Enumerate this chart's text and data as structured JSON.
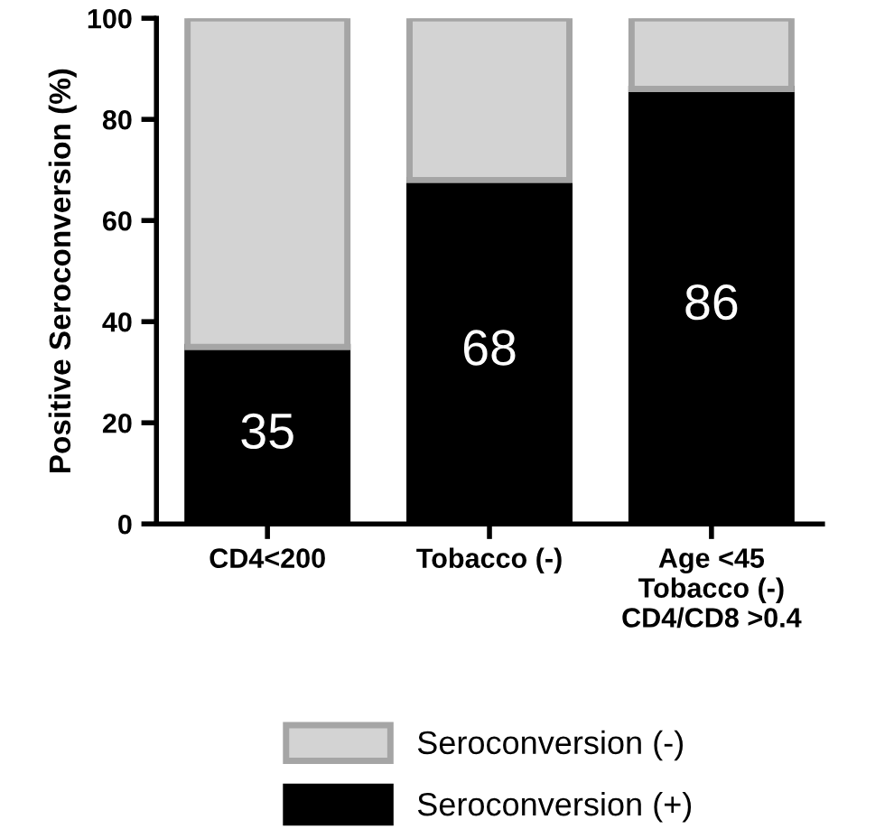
{
  "chart_data": {
    "type": "bar",
    "stacked": true,
    "ylabel": "Positive Seroconversion (%)",
    "categories": [
      "CD4<200",
      "Tobacco (-)",
      "Age <45\nTobacco (-)\nCD4/CD8 >0.4"
    ],
    "series": [
      {
        "name": "Seroconversion (+)",
        "color": "#000000",
        "values": [
          35,
          68,
          86
        ],
        "value_labels": [
          "35",
          "68",
          "86"
        ]
      },
      {
        "name": "Seroconversion (-)",
        "color": "#d3d3d3",
        "values": [
          65,
          32,
          14
        ]
      }
    ],
    "ylim": [
      0,
      100
    ],
    "yticks": [
      0,
      20,
      40,
      60,
      80,
      100
    ],
    "grid": false,
    "legend": "bottom"
  }
}
